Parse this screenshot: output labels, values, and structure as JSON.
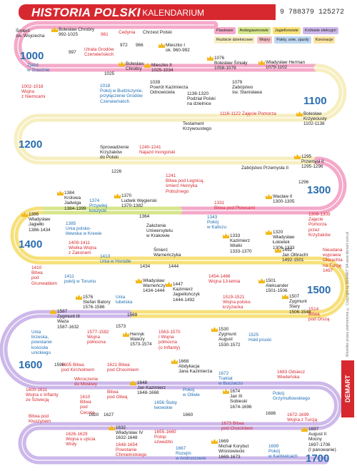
{
  "header": {
    "title": "HISTORIA POLSKI",
    "subtitle": "- KALENDARIUM",
    "barcode": "9 788379 125272"
  },
  "legend": [
    {
      "label": "Piastowie",
      "color": "#f4a9c9"
    },
    {
      "label": "Andegawenowie",
      "color": "#d6e58a"
    },
    {
      "label": "Jagiellonowie",
      "color": "#f7e07a"
    },
    {
      "label": "Królowie elekcyjni",
      "color": "#cdb8ea"
    },
    {
      "label": "Rozbicie dzielnicowe",
      "color": "#f7eec0"
    },
    {
      "label": "Wojny",
      "color": "#f6c2c4"
    },
    {
      "label": "Pakty, unie, zjazdy",
      "color": "#bcd6f0"
    },
    {
      "label": "Koronacje",
      "color": "#fbe3a0"
    }
  ],
  "centuries": [
    1000,
    1100,
    1200,
    1300,
    1400,
    1500,
    1600,
    1700
  ],
  "events": [
    {
      "text": "Śmierć\nśw. Wojciecha",
      "color": "#222"
    },
    {
      "text": "Bolesław Chrobry\n992-1025",
      "color": "#222",
      "crown": true
    },
    {
      "text": "997",
      "color": "#222"
    },
    {
      "text": "981",
      "color": "#d7282f"
    },
    {
      "text": "Cedynia",
      "color": "#d7282f"
    },
    {
      "text": "972",
      "color": "#222"
    },
    {
      "text": "Chrzest Polski",
      "color": "#222"
    },
    {
      "text": "966",
      "color": "#222"
    },
    {
      "text": "Utrata Grodów\nCzerwieńskich",
      "color": "#d7282f"
    },
    {
      "text": "Mieszko I\nok. 960-992",
      "color": "#222",
      "crown": true
    },
    {
      "text": "Zjazd\nw Gnieźnie",
      "color": "#1f6fb5"
    },
    {
      "text": "1002-1018\nWojna\nz Niemcami",
      "color": "#d7282f"
    },
    {
      "text": "Bolesław\nChrobry",
      "color": "#222",
      "crown": true
    },
    {
      "text": "1025",
      "color": "#222"
    },
    {
      "text": "Mieszko II\n1025-1034",
      "color": "#222",
      "crown": true
    },
    {
      "text": "1018\nPokój w Budziszynie,\nprzyłączenie Grodów\nCzerwieńskich",
      "color": "#1f6fb5"
    },
    {
      "text": "1039\nPowrót Kazimierza\nOdnowiciela",
      "color": "#222"
    },
    {
      "text": "1076\nBolesław Śmiały\n1058-1079",
      "color": "#222",
      "crown": true
    },
    {
      "text": "Władysław Herman\n1079-1102",
      "color": "#222",
      "crown": true
    },
    {
      "text": "1079\nZabójstwo\nśw. Stanisława",
      "color": "#222"
    },
    {
      "text": "1138-1320\nPodział Polski\nna dzielnice",
      "color": "#222"
    },
    {
      "text": "1116-1122 Zajęcie Pomorza",
      "color": "#d7282f"
    },
    {
      "text": "Bolesław\nKrzywousty\n1102-1138",
      "color": "#222",
      "crown": true
    },
    {
      "text": "Testament\nKrzywoustego",
      "color": "#222"
    },
    {
      "text": "Sprowadzenie\nKrzyżaków\ndo Polski",
      "color": "#222"
    },
    {
      "text": "1240-1241\nNajazd mongolski",
      "color": "#d7282f"
    },
    {
      "text": "1226",
      "color": "#222"
    },
    {
      "text": "1241\nBitwa pod Legnicą,\nśmierć Henryka\nPobożnego",
      "color": "#d7282f"
    },
    {
      "text": "1295\nPrzemysł II\n1295-1296",
      "color": "#222",
      "crown": true
    },
    {
      "text": "Zabójstwo Przemysła II",
      "color": "#222"
    },
    {
      "text": "1296",
      "color": "#222"
    },
    {
      "text": "Wacław II\n1300-1305",
      "color": "#222",
      "crown": true
    },
    {
      "text": "1331\nBitwa pod Płowcami",
      "color": "#d7282f"
    },
    {
      "text": "1308-1309\nZajęcie\nPomorza\nprzez\nKrzyżaków",
      "color": "#d7282f"
    },
    {
      "text": "1384\nKrólowa\nJadwiga\n1384-1399",
      "color": "#222",
      "crown": true
    },
    {
      "text": "1374\nPrzywilej\nkoszycki",
      "color": "#1f6fb5"
    },
    {
      "text": "1370\nLudwik Węgierski\n1370-1382",
      "color": "#222",
      "crown": true
    },
    {
      "text": "1386\nWładysław\nJagiełło\n1386-1434",
      "color": "#222",
      "crown": true
    },
    {
      "text": "1364",
      "color": "#222"
    },
    {
      "text": "1385\nUnia polsko-\nlitewska w Krewie",
      "color": "#1f6fb5"
    },
    {
      "text": "Założenie\nUniwersytetu\nw Krakowie",
      "color": "#222"
    },
    {
      "text": "1343\nPokój\nw Kaliszu",
      "color": "#1f6fb5"
    },
    {
      "text": "1333\nKazimierz\nWielki\n1333-1370",
      "color": "#222",
      "crown": true
    },
    {
      "text": "1320\nWładysław\nŁokietek\n1306-1333",
      "color": "#222",
      "crown": true
    },
    {
      "text": "1409-1411\nWielka Wojna\nz Zakonem",
      "color": "#d7282f"
    },
    {
      "text": "1413\nUnia w Horodle",
      "color": "#1f6fb5"
    },
    {
      "text": "Śmierć\nWarneńczyka",
      "color": "#222"
    },
    {
      "text": "1410\nBitwa\npod\nGrunwaldem",
      "color": "#d7282f"
    },
    {
      "text": "1434",
      "color": "#222"
    },
    {
      "text": "1444",
      "color": "#222"
    },
    {
      "text": "1492\nJan Olbracht\n1492-1501",
      "color": "#222",
      "crown": true
    },
    {
      "text": "Nieudana\nwyprawa\nOlbrachta\nna Turcję\n1497",
      "color": "#d7282f"
    },
    {
      "text": "1411\npokój w Toruniu",
      "color": "#1f6fb5"
    },
    {
      "text": "Władysław\nWarneńczyk\n1434-1444",
      "color": "#222",
      "crown": true
    },
    {
      "text": "1447\nKazimierz\nJagiellończyk\n1444-1492",
      "color": "#222",
      "crown": true
    },
    {
      "text": "1454-1466\nWojna 13-letnia",
      "color": "#d7282f"
    },
    {
      "text": "1501\nAleksander\n1501-1506",
      "color": "#222",
      "crown": true
    },
    {
      "text": "1507\nZygmunt\nStary\n1506-1548",
      "color": "#222",
      "crown": true
    },
    {
      "text": "1519-1521\nWojna polsko-\nkrzyżacka",
      "color": "#d7282f"
    },
    {
      "text": "1514\nBitwa\npod Orszą",
      "color": "#d7282f"
    },
    {
      "text": "1576\nStefan Batory\n1576-1586",
      "color": "#222",
      "crown": true
    },
    {
      "text": "Unia\nlubelska",
      "color": "#1f6fb5"
    },
    {
      "text": "1569",
      "color": "#222"
    },
    {
      "text": "1587\nZygmunt III\nWaza\n1587-1632",
      "color": "#222",
      "crown": true
    },
    {
      "text": "1573",
      "color": "#222"
    },
    {
      "text": "1577-1582\nWojna\npółnocna",
      "color": "#d7282f"
    },
    {
      "text": "Henryk\nWalezy\n1573-1574",
      "color": "#222",
      "crown": true
    },
    {
      "text": "1563-1570\nI Wojna\npółnocna\n(o Inflanty)",
      "color": "#d7282f"
    },
    {
      "text": "1530\nZygmunt\nAugust\n1530-1572",
      "color": "#222",
      "crown": true
    },
    {
      "text": "1525\nHołd pruski",
      "color": "#1f6fb5"
    },
    {
      "text": "Unia\nbrzeska,\npowstanie\nkościoła\nunickiego",
      "color": "#1f6fb5"
    },
    {
      "text": "1596",
      "color": "#222"
    },
    {
      "text": "1605 Bitwa\npod Kircholmem",
      "color": "#d7282f"
    },
    {
      "text": "1621 Bitwa\npod Chocimiem",
      "color": "#d7282f"
    },
    {
      "text": "1668\nAbdykacja\nJana Kazimierza",
      "color": "#222",
      "crown": true
    },
    {
      "text": "1672\nTraktat\nw Buczaczu",
      "color": "#1f6fb5"
    },
    {
      "text": "1683 Odsiecz\nWiedeńska",
      "color": "#d7282f"
    },
    {
      "text": "1600-1611\nWojna o Inflanty\nze Szwecją",
      "color": "#d7282f"
    },
    {
      "text": "Wkroczenie\ndo Moskwy",
      "color": "#d7282f"
    },
    {
      "text": "1610\nBitwa\npod\nCecorą",
      "color": "#d7282f"
    },
    {
      "text": "Bitwa\npod Oliwą",
      "color": "#d7282f"
    },
    {
      "text": "1648\nJan Kazimierz\n1648-1668",
      "color": "#222",
      "crown": true
    },
    {
      "text": "Pokój\nw Oliwie",
      "color": "#1f6fb5"
    },
    {
      "text": "1674\nJan III\nSobieski\n1674-1696",
      "color": "#222",
      "crown": true
    },
    {
      "text": "Pokój\nGrzymułtowskiego",
      "color": "#1f6fb5"
    },
    {
      "text": "1656 Śluby\nlwowskie",
      "color": "#1f6fb5"
    },
    {
      "text": "1620",
      "color": "#222"
    },
    {
      "text": "1627",
      "color": "#222"
    },
    {
      "text": "1660",
      "color": "#222"
    },
    {
      "text": "1686",
      "color": "#222"
    },
    {
      "text": "Bitwa pod\nKłuszynem",
      "color": "#d7282f"
    },
    {
      "text": "1632\nWładysław IV\n1632-1648",
      "color": "#222",
      "crown": true
    },
    {
      "text": "1655-1660\nPotop\nszwedzki",
      "color": "#d7282f"
    },
    {
      "text": "1673 Bitwa\npod Chocimiem",
      "color": "#d7282f"
    },
    {
      "text": "1672-1699\nWojna z Turcją",
      "color": "#d7282f"
    },
    {
      "text": "1626-1629\nWojna u ujścia\nWisły",
      "color": "#d7282f"
    },
    {
      "text": "1648-1654\nPowstanie\nChmielnickiego",
      "color": "#d7282f"
    },
    {
      "text": "1667\nRozejm\nw Andruszowie",
      "color": "#1f6fb5"
    },
    {
      "text": "1669\nMichał Korybut\nWiśniowiecki\n1669-1673",
      "color": "#222",
      "crown": true
    },
    {
      "text": "1699\nPokój\nw Karłowicach",
      "color": "#1f6fb5"
    },
    {
      "text": "1697\nAugust II\nMocny\n1697-1706\n(I panowanie)",
      "color": "#222",
      "crown": true
    }
  ],
  "copyright": "Wszelkie prawa zastrzeżone © Copyright by DEMART SA www.demart.com.pl",
  "logo": "DEMART"
}
